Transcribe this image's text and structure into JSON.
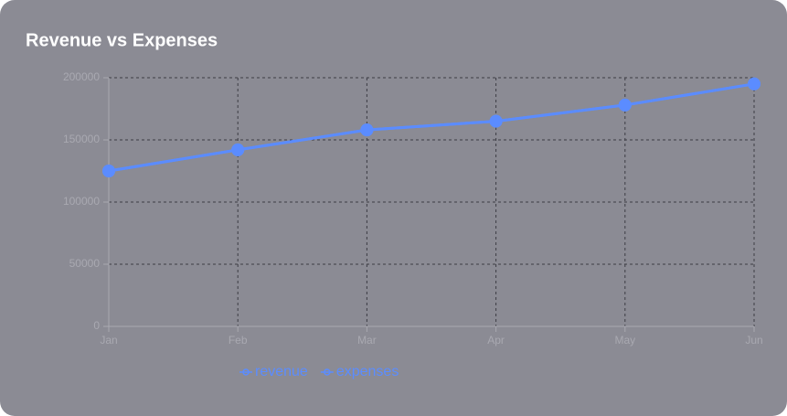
{
  "chart_data": {
    "type": "line",
    "title": "Revenue vs Expenses",
    "categories": [
      "Jan",
      "Feb",
      "Mar",
      "Apr",
      "May",
      "Jun"
    ],
    "series": [
      {
        "name": "revenue",
        "color": "#5b8cff",
        "values": [
          125000,
          142000,
          158000,
          165000,
          178000,
          195000
        ]
      },
      {
        "name": "expenses",
        "color": "#5b8cff",
        "values": [
          125000,
          142000,
          158000,
          165000,
          178000,
          195000
        ]
      }
    ],
    "ylim": [
      0,
      200000
    ],
    "yticks": [
      0,
      50000,
      100000,
      150000,
      200000
    ],
    "grid": true,
    "legend": "bottom"
  }
}
